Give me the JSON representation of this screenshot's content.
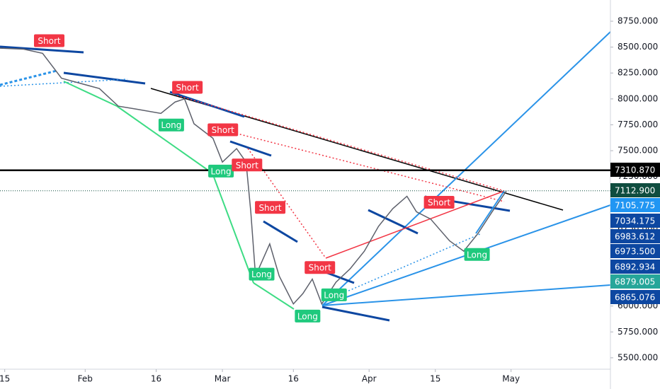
{
  "chart_data": {
    "type": "line",
    "color": "#5d606b",
    "x": [
      -1,
      4,
      8,
      12,
      16,
      20,
      24,
      28,
      33,
      36,
      38,
      40,
      44,
      46,
      49,
      51,
      52,
      53,
      56,
      58,
      61,
      63,
      65,
      67,
      70,
      73,
      76,
      79,
      82,
      85,
      87,
      90,
      94,
      97,
      100,
      103,
      106
    ],
    "values": [
      8490,
      8480,
      8440,
      8200,
      8150,
      8100,
      7930,
      7900,
      7860,
      7970,
      8000,
      7760,
      7620,
      7390,
      7520,
      7390,
      6910,
      6290,
      6600,
      6290,
      6020,
      6120,
      6260,
      6020,
      6230,
      6360,
      6530,
      6770,
      6940,
      7060,
      6910,
      6840,
      6630,
      6530,
      6700,
      6910,
      7110
    ],
    "xlim": [
      -1,
      128
    ],
    "xticks": [
      {
        "value": 0,
        "label": "15"
      },
      {
        "value": 17,
        "label": "Feb"
      },
      {
        "value": 32,
        "label": "16"
      },
      {
        "value": 46,
        "label": "Mar"
      },
      {
        "value": 61,
        "label": "16"
      },
      {
        "value": 77,
        "label": "Apr"
      },
      {
        "value": 91,
        "label": "15"
      },
      {
        "value": 107,
        "label": "May"
      }
    ],
    "ylim": [
      5390,
      8955
    ],
    "yticks": [
      {
        "value": 5500,
        "label": "5500.000"
      },
      {
        "value": 5750,
        "label": "5750.000"
      },
      {
        "value": 6000,
        "label": "6000.000"
      },
      {
        "value": 6250,
        "label": "6250.000"
      },
      {
        "value": 6500,
        "label": "6500.000"
      },
      {
        "value": 6750,
        "label": "6750.000"
      },
      {
        "value": 7000,
        "label": "7000.000"
      },
      {
        "value": 7250,
        "label": "7250.000"
      },
      {
        "value": 7500,
        "label": "7500.000"
      },
      {
        "value": 7750,
        "label": "7750.000"
      },
      {
        "value": 8000,
        "label": "8000.000"
      },
      {
        "value": 8250,
        "label": "8250.000"
      },
      {
        "value": 8500,
        "label": "8500.000"
      },
      {
        "value": 8750,
        "label": "8750.000"
      }
    ],
    "grid": false,
    "price_tags": [
      {
        "value": 7310.87,
        "label": "7310.870",
        "color": "#000000"
      },
      {
        "value": 7112.9,
        "label": "7112.900",
        "color": "#0f4d3f"
      },
      {
        "value": 7105.775,
        "label": "7105.775",
        "color": "#2196f3"
      },
      {
        "value": 7034.175,
        "label": "7034.175",
        "color": "#0d47a1"
      },
      {
        "value": 6983.612,
        "label": "6983.612",
        "color": "#0d47a1"
      },
      {
        "value": 6973.5,
        "label": "6973.500",
        "color": "#0d47a1"
      },
      {
        "value": 6892.934,
        "label": "6892.934",
        "color": "#0d47a1"
      },
      {
        "value": 6879.005,
        "label": "6879.005",
        "color": "#26a69a"
      },
      {
        "value": 6865.076,
        "label": "6865.076",
        "color": "#0d47a1"
      }
    ],
    "signals": [
      {
        "label": "Short",
        "x": 9.4,
        "price": 8480,
        "color": "#f23645"
      },
      {
        "label": "Short",
        "x": 38.6,
        "price": 8030,
        "color": "#f23645"
      },
      {
        "label": "Long",
        "x": 35.2,
        "price": 7830,
        "color": "#1fc97d"
      },
      {
        "label": "Short",
        "x": 46.1,
        "price": 7620,
        "color": "#f23645"
      },
      {
        "label": "Long",
        "x": 45.7,
        "price": 7385,
        "color": "#1fc97d"
      },
      {
        "label": "Short",
        "x": 51.2,
        "price": 7280,
        "color": "#f23645"
      },
      {
        "label": "Short",
        "x": 56.1,
        "price": 6870,
        "color": "#f23645"
      },
      {
        "label": "Long",
        "x": 54.3,
        "price": 6390,
        "color": "#1fc97d"
      },
      {
        "label": "Short",
        "x": 66.6,
        "price": 6290,
        "color": "#f23645"
      },
      {
        "label": "Long",
        "x": 69.6,
        "price": 6190,
        "color": "#1fc97d"
      },
      {
        "label": "Long",
        "x": 64,
        "price": 5985,
        "color": "#1fc97d"
      },
      {
        "label": "Short",
        "x": 91.8,
        "price": 6920,
        "color": "#f23645"
      },
      {
        "label": "Long",
        "x": 99.8,
        "price": 6580,
        "color": "#1fc97d"
      }
    ]
  }
}
